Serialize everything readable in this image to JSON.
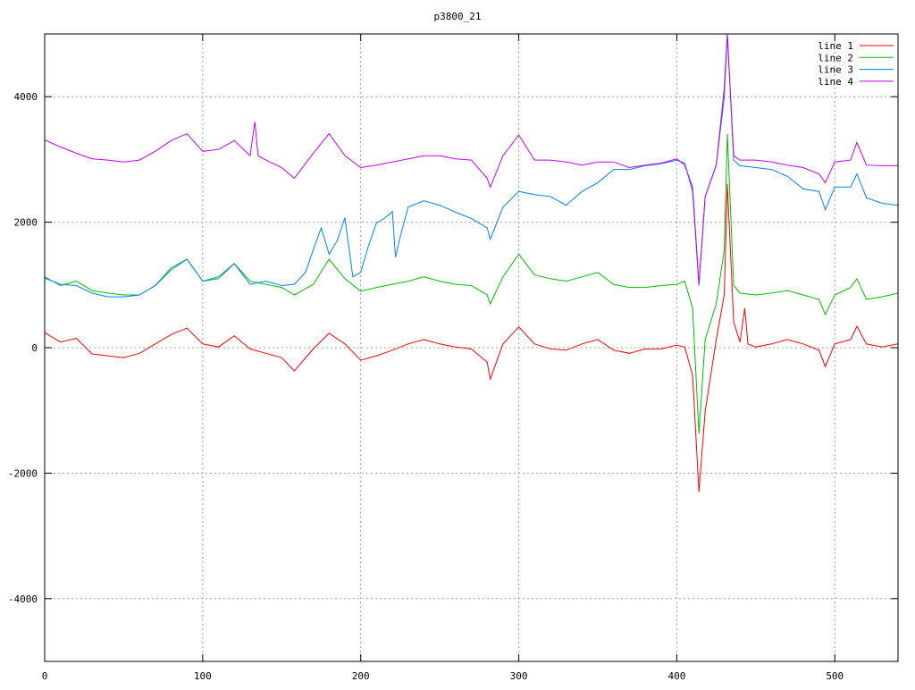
{
  "chart_data": {
    "type": "line",
    "title": "p3800_21",
    "xlim": [
      0,
      540
    ],
    "xticks": [
      0,
      100,
      200,
      300,
      400,
      500
    ],
    "ylim": [
      -5000,
      5000
    ],
    "yticks": [
      -4000,
      -2000,
      0,
      2000,
      4000
    ],
    "grid": true,
    "legend": "top-right",
    "series": [
      {
        "name": "line 1",
        "color": "#ff0000",
        "x": [
          0,
          10,
          20,
          30,
          40,
          50,
          60,
          70,
          80,
          90,
          100,
          110,
          120,
          130,
          140,
          150,
          158,
          170,
          180,
          190,
          200,
          210,
          220,
          230,
          240,
          250,
          260,
          270,
          280,
          282,
          290,
          300,
          310,
          320,
          330,
          340,
          350,
          360,
          370,
          380,
          390,
          400,
          405,
          410,
          414,
          418,
          425,
          430,
          432,
          436,
          440,
          443,
          445,
          450,
          460,
          470,
          480,
          490,
          494,
          500,
          510,
          514,
          520,
          530,
          540
        ],
        "values": [
          240,
          90,
          150,
          -100,
          -130,
          -160,
          -90,
          60,
          210,
          310,
          60,
          10,
          190,
          -20,
          -90,
          -160,
          -370,
          -20,
          230,
          60,
          -200,
          -130,
          -40,
          60,
          130,
          60,
          10,
          -20,
          -230,
          -500,
          60,
          330,
          60,
          -20,
          -40,
          60,
          130,
          -40,
          -90,
          -20,
          -20,
          40,
          10,
          -440,
          -2300,
          -1010,
          130,
          840,
          2610,
          410,
          90,
          630,
          60,
          10,
          60,
          130,
          60,
          -40,
          -300,
          60,
          130,
          340,
          60,
          10,
          60
        ]
      },
      {
        "name": "line 2",
        "color": "#00c000",
        "x": [
          0,
          10,
          20,
          30,
          40,
          50,
          60,
          70,
          80,
          90,
          100,
          110,
          120,
          130,
          140,
          150,
          158,
          170,
          180,
          190,
          200,
          210,
          220,
          230,
          240,
          250,
          260,
          270,
          280,
          282,
          290,
          300,
          310,
          320,
          330,
          340,
          350,
          360,
          370,
          380,
          390,
          400,
          405,
          410,
          414,
          418,
          425,
          430,
          432,
          436,
          440,
          450,
          460,
          470,
          480,
          490,
          494,
          500,
          510,
          514,
          520,
          530,
          540
        ],
        "values": [
          1130,
          990,
          1060,
          910,
          870,
          840,
          840,
          990,
          1270,
          1410,
          1060,
          1100,
          1340,
          1060,
          1010,
          960,
          840,
          1010,
          1410,
          1100,
          900,
          960,
          1010,
          1060,
          1130,
          1060,
          1010,
          990,
          840,
          700,
          1130,
          1490,
          1160,
          1100,
          1060,
          1130,
          1200,
          1010,
          960,
          960,
          990,
          1010,
          1060,
          630,
          -1370,
          130,
          700,
          1560,
          3410,
          990,
          870,
          840,
          870,
          910,
          840,
          770,
          530,
          840,
          960,
          1100,
          770,
          810,
          870
        ]
      },
      {
        "name": "line 3",
        "color": "#0080ff",
        "x": [
          0,
          10,
          20,
          30,
          40,
          50,
          60,
          70,
          80,
          90,
          100,
          110,
          120,
          130,
          140,
          150,
          158,
          165,
          170,
          175,
          180,
          185,
          190,
          195,
          200,
          205,
          210,
          215,
          220,
          222,
          225,
          230,
          240,
          250,
          260,
          270,
          280,
          282,
          290,
          300,
          310,
          320,
          330,
          340,
          350,
          360,
          370,
          380,
          390,
          400,
          405,
          410,
          414,
          418,
          425,
          430,
          432,
          436,
          440,
          450,
          460,
          470,
          480,
          490,
          494,
          500,
          510,
          514,
          520,
          530,
          540
        ],
        "values": [
          1110,
          1010,
          990,
          870,
          810,
          810,
          840,
          990,
          1240,
          1410,
          1060,
          1130,
          1340,
          1010,
          1060,
          990,
          1010,
          1200,
          1560,
          1910,
          1490,
          1700,
          2070,
          1130,
          1200,
          1630,
          1990,
          2060,
          2170,
          1440,
          1770,
          2240,
          2340,
          2270,
          2160,
          2060,
          1910,
          1730,
          2240,
          2490,
          2440,
          2410,
          2270,
          2490,
          2630,
          2840,
          2840,
          2900,
          2930,
          2990,
          2940,
          2490,
          990,
          2410,
          2910,
          3990,
          4990,
          2990,
          2900,
          2870,
          2840,
          2730,
          2530,
          2490,
          2200,
          2560,
          2560,
          2770,
          2390,
          2300,
          2270
        ]
      },
      {
        "name": "line 4",
        "color": "#c000ff",
        "x": [
          0,
          10,
          20,
          30,
          40,
          50,
          60,
          70,
          80,
          90,
          100,
          110,
          120,
          130,
          133,
          135,
          140,
          150,
          158,
          170,
          180,
          190,
          200,
          210,
          220,
          230,
          240,
          250,
          260,
          270,
          280,
          282,
          290,
          300,
          310,
          320,
          330,
          340,
          350,
          360,
          370,
          380,
          390,
          400,
          405,
          410,
          414,
          418,
          425,
          430,
          432,
          436,
          440,
          450,
          460,
          470,
          480,
          490,
          494,
          500,
          510,
          514,
          520,
          530,
          540
        ],
        "values": [
          3310,
          3200,
          3100,
          3010,
          2990,
          2960,
          2990,
          3130,
          3300,
          3410,
          3130,
          3160,
          3300,
          3060,
          3600,
          3060,
          2990,
          2870,
          2700,
          3100,
          3410,
          3060,
          2870,
          2910,
          2960,
          3010,
          3060,
          3060,
          3010,
          2990,
          2700,
          2560,
          3060,
          3390,
          2990,
          2990,
          2960,
          2910,
          2960,
          2960,
          2870,
          2910,
          2940,
          3010,
          2910,
          2560,
          1010,
          2410,
          2910,
          4130,
          5000,
          3060,
          2990,
          2990,
          2960,
          2910,
          2870,
          2770,
          2630,
          2960,
          2990,
          3270,
          2910,
          2900,
          2900
        ]
      }
    ]
  }
}
